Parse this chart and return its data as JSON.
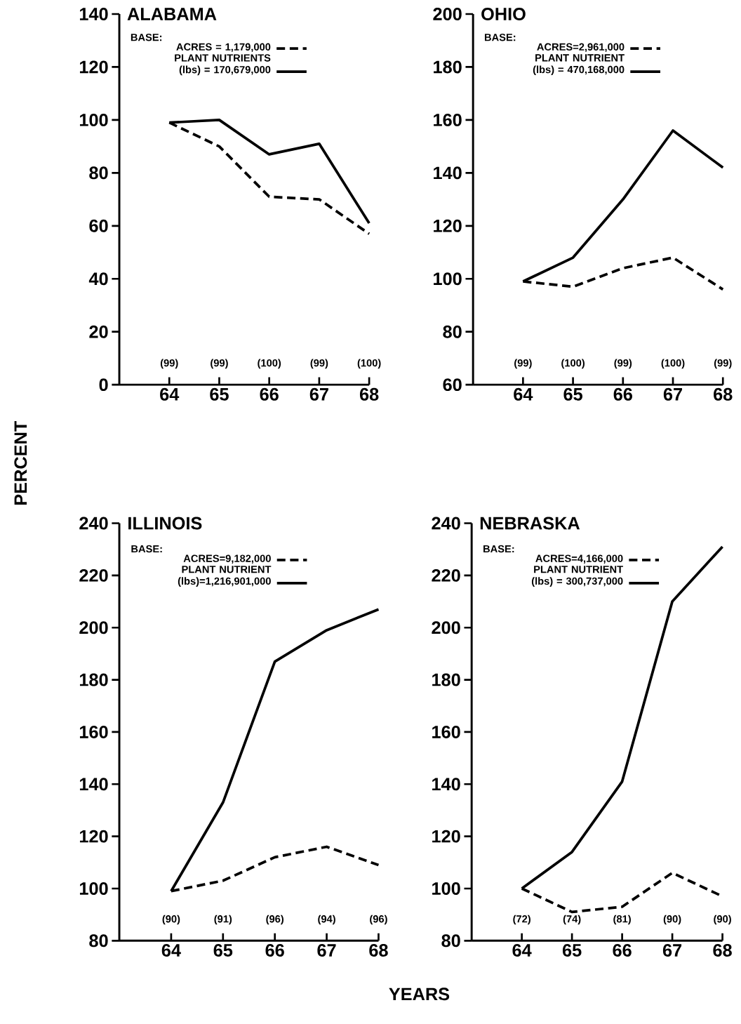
{
  "chart_data": [
    {
      "type": "line",
      "title": "ALABAMA",
      "ylabel": "PERCENT",
      "legend_title": "BASE:",
      "legend": "top left",
      "marker": "none",
      "grid": false,
      "x": [
        64,
        65,
        66,
        67,
        68
      ],
      "xlim": [
        63,
        68
      ],
      "xticks": [
        64,
        65,
        66,
        67,
        68
      ],
      "ylim": [
        0,
        140
      ],
      "yticks": [
        0,
        20,
        40,
        60,
        80,
        100,
        120,
        140
      ],
      "series": [
        {
          "name": "ACRES = 1,179,000",
          "color": "#000000",
          "line_style": "dashed",
          "values": [
            99,
            90,
            71,
            70,
            57
          ]
        },
        {
          "name": "PLANT NUTRIENTS (lbs) = 170,679,000",
          "color": "#000000",
          "line_style": "solid",
          "values": [
            99,
            100,
            87,
            91,
            61
          ]
        }
      ],
      "annotations": [
        "(99)",
        "(99)",
        "(100)",
        "(99)",
        "(100)"
      ]
    },
    {
      "type": "line",
      "title": "OHIO",
      "legend_title": "BASE:",
      "legend": "top left",
      "marker": "none",
      "grid": false,
      "x": [
        64,
        65,
        66,
        67,
        68
      ],
      "xlim": [
        63,
        68
      ],
      "xticks": [
        64,
        65,
        66,
        67,
        68
      ],
      "ylim": [
        60,
        200
      ],
      "yticks": [
        60,
        80,
        100,
        120,
        140,
        160,
        180,
        200
      ],
      "series": [
        {
          "name": "ACRES=2,961,000",
          "color": "#000000",
          "line_style": "dashed",
          "values": [
            99,
            97,
            104,
            108,
            96
          ]
        },
        {
          "name": "PLANT NUTRIENT (lbs) = 470,168,000",
          "color": "#000000",
          "line_style": "solid",
          "values": [
            99,
            108,
            130,
            156,
            142
          ]
        }
      ],
      "annotations": [
        "(99)",
        "(100)",
        "(99)",
        "(100)",
        "(99)"
      ]
    },
    {
      "type": "line",
      "title": "ILLINOIS",
      "xlabel": "YEARS",
      "legend_title": "BASE:",
      "legend": "top left",
      "marker": "none",
      "grid": false,
      "x": [
        64,
        65,
        66,
        67,
        68
      ],
      "xlim": [
        63,
        68
      ],
      "xticks": [
        64,
        65,
        66,
        67,
        68
      ],
      "ylim": [
        80,
        240
      ],
      "yticks": [
        80,
        100,
        120,
        140,
        160,
        180,
        200,
        220,
        240
      ],
      "series": [
        {
          "name": "ACRES=9,182,000",
          "color": "#000000",
          "line_style": "dashed",
          "values": [
            99,
            103,
            112,
            116,
            109
          ]
        },
        {
          "name": "PLANT NUTRIENT (lbs)=1,216,901,000",
          "color": "#000000",
          "line_style": "solid",
          "values": [
            99,
            133,
            187,
            199,
            207
          ]
        }
      ],
      "annotations": [
        "(90)",
        "(91)",
        "(96)",
        "(94)",
        "(96)"
      ]
    },
    {
      "type": "line",
      "title": "NEBRASKA",
      "legend_title": "BASE:",
      "legend": "top left",
      "marker": "none",
      "grid": false,
      "x": [
        64,
        65,
        66,
        67,
        68
      ],
      "xlim": [
        63,
        68
      ],
      "xticks": [
        64,
        65,
        66,
        67,
        68
      ],
      "ylim": [
        80,
        240
      ],
      "yticks": [
        80,
        100,
        120,
        140,
        160,
        180,
        200,
        220,
        240
      ],
      "series": [
        {
          "name": "ACRES=4,166,000",
          "color": "#000000",
          "line_style": "dashed",
          "values": [
            100,
            91,
            93,
            106,
            97
          ]
        },
        {
          "name": "PLANT NUTRIENT (lbs) = 300,737,000",
          "color": "#000000",
          "line_style": "solid",
          "values": [
            100,
            114,
            141,
            210,
            231
          ]
        }
      ],
      "annotations": [
        "(72)",
        "(74)",
        "(81)",
        "(90)",
        "(90)"
      ]
    }
  ]
}
